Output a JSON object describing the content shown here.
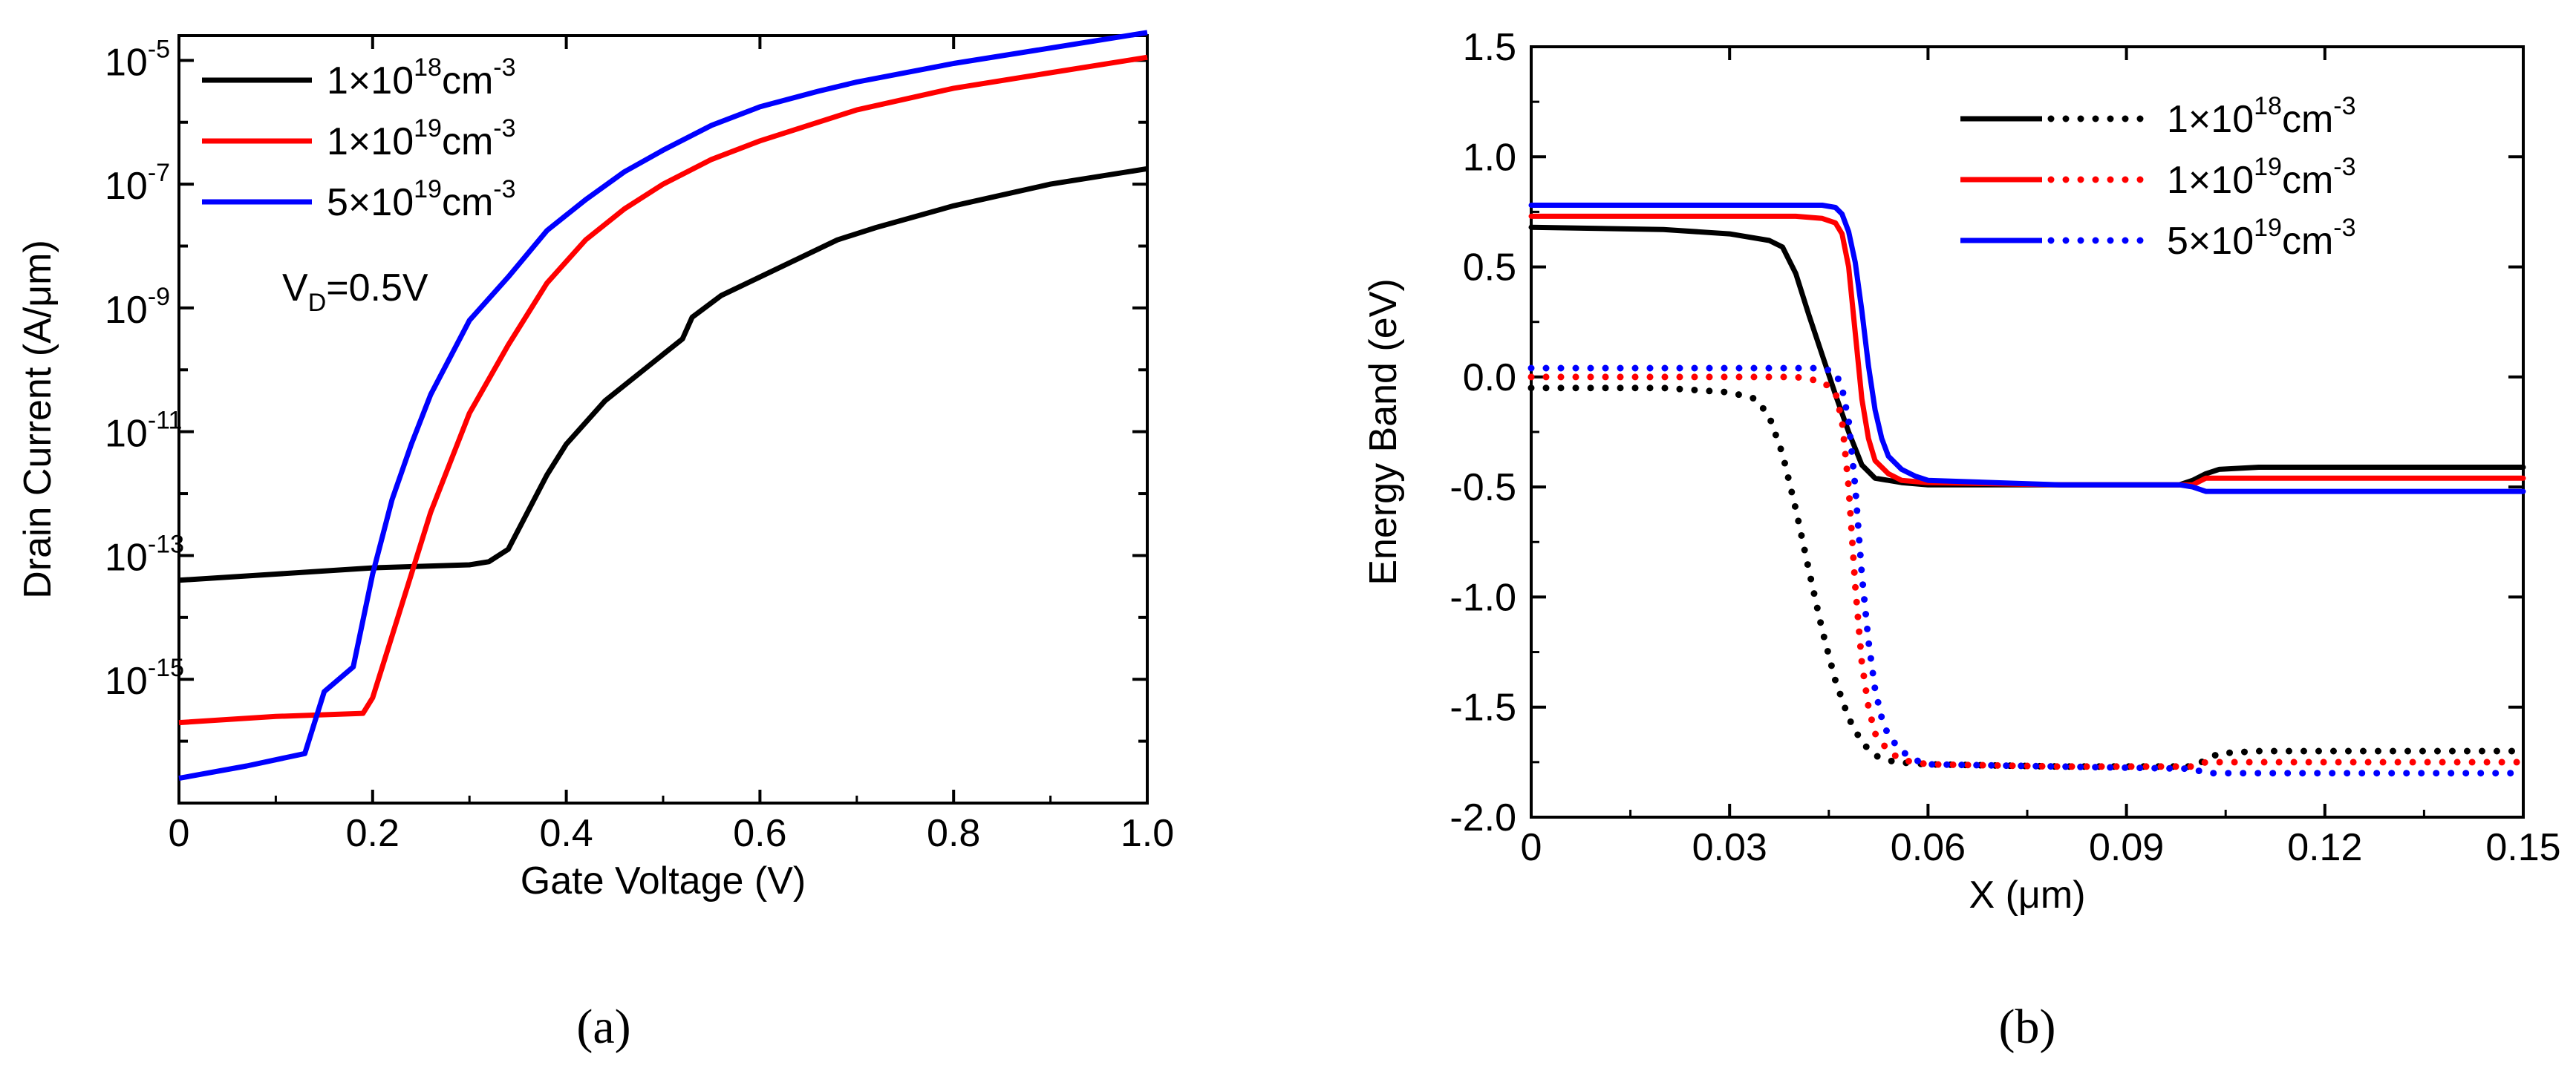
{
  "colors": {
    "black": "#000000",
    "red": "#ff0000",
    "blue": "#0000ff"
  },
  "chart_data": [
    {
      "type": "line",
      "panel_label": "a",
      "caption": "(a)",
      "xlabel": "Gate Voltage (V)",
      "ylabel": "Drain Current (A/μm)",
      "xscale": "linear",
      "yscale": "log",
      "xlim": [
        0,
        1.0
      ],
      "ylim_log10": [
        -17,
        -4.6
      ],
      "xticks": [
        0,
        0.2,
        0.4,
        0.6,
        0.8,
        1.0
      ],
      "xtick_labels": [
        "0",
        "0.2",
        "0.4",
        "0.6",
        "0.8",
        "1.0"
      ],
      "yticks_log10": [
        -15,
        -13,
        -11,
        -9,
        -7,
        -5
      ],
      "ytick_labels": [
        {
          "base": "10",
          "exp": "-15"
        },
        {
          "base": "10",
          "exp": "-13"
        },
        {
          "base": "10",
          "exp": "-11"
        },
        {
          "base": "10",
          "exp": "-9"
        },
        {
          "base": "10",
          "exp": "-7"
        },
        {
          "base": "10",
          "exp": "-5"
        }
      ],
      "annotation": {
        "main": "V",
        "sub": "D",
        "rest": "=0.5V"
      },
      "legend_position": "top-left",
      "series": [
        {
          "name": "1×10^18 cm^-3",
          "legend": {
            "text": "1×10",
            "sup": "18",
            "unit": "cm",
            "unit_sup": "-3"
          },
          "color": "#000000",
          "x": [
            0,
            0.1,
            0.2,
            0.3,
            0.32,
            0.34,
            0.36,
            0.38,
            0.4,
            0.44,
            0.48,
            0.5,
            0.52,
            0.53,
            0.56,
            0.6,
            0.64,
            0.68,
            0.72,
            0.8,
            0.9,
            1.0
          ],
          "log10_y": [
            -13.4,
            -13.3,
            -13.2,
            -13.15,
            -13.1,
            -12.9,
            -12.3,
            -11.7,
            -11.2,
            -10.5,
            -10.0,
            -9.75,
            -9.5,
            -9.15,
            -8.8,
            -8.5,
            -8.2,
            -7.9,
            -7.7,
            -7.35,
            -7.0,
            -6.75
          ]
        },
        {
          "name": "1×10^19 cm^-3",
          "legend": {
            "text": "1×10",
            "sup": "19",
            "unit": "cm",
            "unit_sup": "-3"
          },
          "color": "#ff0000",
          "x": [
            0,
            0.1,
            0.19,
            0.2,
            0.22,
            0.24,
            0.26,
            0.28,
            0.3,
            0.34,
            0.38,
            0.42,
            0.46,
            0.5,
            0.55,
            0.6,
            0.7,
            0.8,
            0.9,
            1.0
          ],
          "log10_y": [
            -15.7,
            -15.6,
            -15.55,
            -15.3,
            -14.3,
            -13.3,
            -12.3,
            -11.5,
            -10.7,
            -9.6,
            -8.6,
            -7.9,
            -7.4,
            -7.0,
            -6.6,
            -6.3,
            -5.8,
            -5.45,
            -5.2,
            -4.95
          ]
        },
        {
          "name": "5×10^19 cm^-3",
          "legend": {
            "text": "5×10",
            "sup": "19",
            "unit": "cm",
            "unit_sup": "-3"
          },
          "color": "#0000ff",
          "x": [
            0,
            0.07,
            0.13,
            0.15,
            0.18,
            0.2,
            0.22,
            0.24,
            0.26,
            0.28,
            0.3,
            0.34,
            0.38,
            0.42,
            0.46,
            0.5,
            0.55,
            0.6,
            0.66,
            0.7,
            0.8,
            0.9,
            1.0
          ],
          "log10_y": [
            -16.6,
            -16.4,
            -16.2,
            -15.2,
            -14.8,
            -13.3,
            -12.1,
            -11.2,
            -10.4,
            -9.8,
            -9.2,
            -8.5,
            -7.75,
            -7.25,
            -6.8,
            -6.45,
            -6.05,
            -5.75,
            -5.5,
            -5.35,
            -5.05,
            -4.8,
            -4.55
          ]
        }
      ]
    },
    {
      "type": "line",
      "panel_label": "b",
      "caption": "(b)",
      "xlabel": "X (μm)",
      "ylabel": "Energy Band (eV)",
      "xlim": [
        0,
        0.15
      ],
      "ylim": [
        -2.0,
        1.5
      ],
      "xticks": [
        0,
        0.03,
        0.06,
        0.09,
        0.12,
        0.15
      ],
      "xtick_labels": [
        "0",
        "0.03",
        "0.06",
        "0.09",
        "0.12",
        "0.15"
      ],
      "yticks": [
        -2.0,
        -1.5,
        -1.0,
        -0.5,
        0.0,
        0.5,
        1.0,
        1.5
      ],
      "ytick_labels": [
        "-2.0",
        "-1.5",
        "-1.0",
        "-0.5",
        "0.0",
        "0.5",
        "1.0",
        "1.5"
      ],
      "legend_position": "top-right",
      "legend_entries": [
        {
          "text": "1×10",
          "sup": "18",
          "unit": "cm",
          "unit_sup": "-3",
          "color": "#000000"
        },
        {
          "text": "1×10",
          "sup": "19",
          "unit": "cm",
          "unit_sup": "-3",
          "color": "#ff0000"
        },
        {
          "text": "5×10",
          "sup": "19",
          "unit": "cm",
          "unit_sup": "-3",
          "color": "#0000ff"
        }
      ],
      "series": [
        {
          "name": "Ec 1×10^18",
          "band": "conduction",
          "style": "solid",
          "color": "#000000",
          "x": [
            0,
            0.02,
            0.03,
            0.036,
            0.038,
            0.04,
            0.042,
            0.044,
            0.046,
            0.048,
            0.05,
            0.052,
            0.056,
            0.06,
            0.08,
            0.098,
            0.1,
            0.102,
            0.104,
            0.11,
            0.15
          ],
          "y": [
            0.68,
            0.67,
            0.65,
            0.62,
            0.59,
            0.47,
            0.28,
            0.1,
            -0.08,
            -0.25,
            -0.4,
            -0.46,
            -0.48,
            -0.49,
            -0.49,
            -0.49,
            -0.47,
            -0.44,
            -0.42,
            -0.41,
            -0.41
          ]
        },
        {
          "name": "Ec 1×10^19",
          "band": "conduction",
          "style": "solid",
          "color": "#ff0000",
          "x": [
            0,
            0.02,
            0.04,
            0.044,
            0.046,
            0.047,
            0.048,
            0.049,
            0.05,
            0.051,
            0.052,
            0.054,
            0.056,
            0.06,
            0.08,
            0.1,
            0.102,
            0.15
          ],
          "y": [
            0.73,
            0.73,
            0.73,
            0.72,
            0.7,
            0.65,
            0.5,
            0.2,
            -0.1,
            -0.28,
            -0.38,
            -0.44,
            -0.47,
            -0.48,
            -0.49,
            -0.49,
            -0.46,
            -0.46
          ]
        },
        {
          "name": "Ec 5×10^19",
          "band": "conduction",
          "style": "solid",
          "color": "#0000ff",
          "x": [
            0,
            0.02,
            0.044,
            0.046,
            0.047,
            0.048,
            0.049,
            0.05,
            0.051,
            0.052,
            0.053,
            0.054,
            0.056,
            0.058,
            0.06,
            0.07,
            0.08,
            0.098,
            0.1,
            0.102,
            0.15
          ],
          "y": [
            0.78,
            0.78,
            0.78,
            0.77,
            0.74,
            0.66,
            0.52,
            0.3,
            0.05,
            -0.15,
            -0.28,
            -0.36,
            -0.42,
            -0.45,
            -0.47,
            -0.48,
            -0.49,
            -0.49,
            -0.5,
            -0.52,
            -0.52
          ]
        },
        {
          "name": "Ev 1×10^18",
          "band": "valence",
          "style": "dotted",
          "color": "#000000",
          "x": [
            0,
            0.02,
            0.03,
            0.034,
            0.036,
            0.038,
            0.04,
            0.042,
            0.044,
            0.046,
            0.048,
            0.05,
            0.052,
            0.055,
            0.06,
            0.08,
            0.1,
            0.102,
            0.104,
            0.11,
            0.15
          ],
          "y": [
            -0.05,
            -0.05,
            -0.07,
            -0.1,
            -0.18,
            -0.35,
            -0.6,
            -0.88,
            -1.15,
            -1.38,
            -1.55,
            -1.66,
            -1.72,
            -1.75,
            -1.76,
            -1.77,
            -1.77,
            -1.74,
            -1.71,
            -1.7,
            -1.7
          ]
        },
        {
          "name": "Ev 1×10^19",
          "band": "valence",
          "style": "dotted",
          "color": "#ff0000",
          "x": [
            0,
            0.02,
            0.04,
            0.044,
            0.046,
            0.047,
            0.048,
            0.049,
            0.05,
            0.051,
            0.052,
            0.054,
            0.056,
            0.06,
            0.08,
            0.1,
            0.102,
            0.15
          ],
          "y": [
            0.0,
            0.0,
            0.0,
            -0.02,
            -0.07,
            -0.2,
            -0.5,
            -0.95,
            -1.3,
            -1.5,
            -1.62,
            -1.7,
            -1.74,
            -1.76,
            -1.77,
            -1.77,
            -1.75,
            -1.75
          ]
        },
        {
          "name": "Ev 5×10^19",
          "band": "valence",
          "style": "dotted",
          "color": "#0000ff",
          "x": [
            0,
            0.02,
            0.044,
            0.046,
            0.047,
            0.048,
            0.049,
            0.05,
            0.051,
            0.052,
            0.053,
            0.054,
            0.056,
            0.058,
            0.06,
            0.08,
            0.1,
            0.102,
            0.15
          ],
          "y": [
            0.04,
            0.04,
            0.04,
            0.02,
            -0.05,
            -0.2,
            -0.5,
            -0.9,
            -1.2,
            -1.42,
            -1.55,
            -1.63,
            -1.7,
            -1.74,
            -1.76,
            -1.77,
            -1.78,
            -1.8,
            -1.8
          ]
        }
      ]
    }
  ]
}
